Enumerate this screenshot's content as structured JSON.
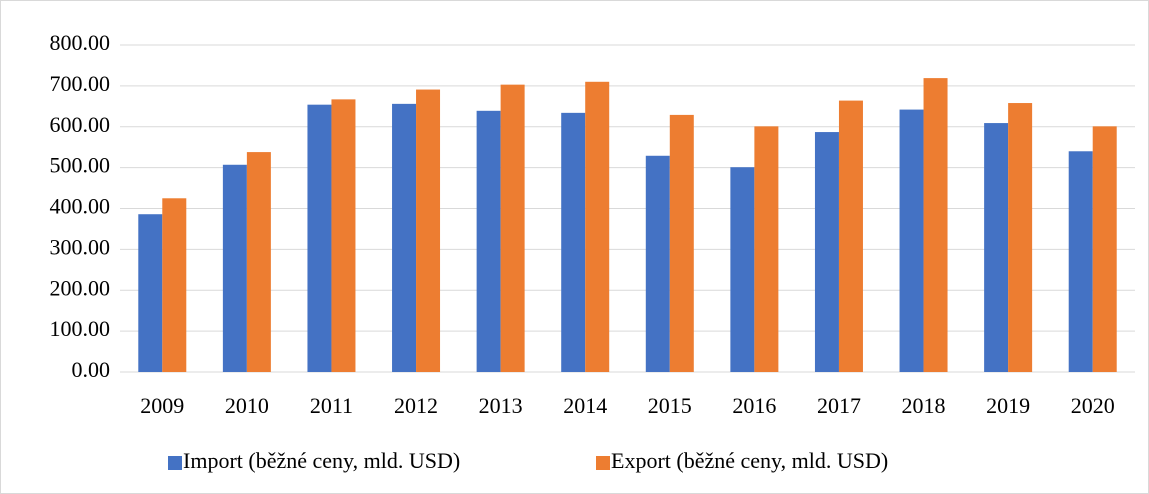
{
  "chart_data": {
    "type": "bar",
    "categories": [
      "2009",
      "2010",
      "2011",
      "2012",
      "2013",
      "2014",
      "2015",
      "2016",
      "2017",
      "2018",
      "2019",
      "2020"
    ],
    "series": [
      {
        "name": "Import (běžné ceny, mld. USD)",
        "color": "#4472c4",
        "values": [
          386,
          507,
          654,
          656,
          639,
          634,
          529,
          501,
          587,
          642,
          609,
          540
        ]
      },
      {
        "name": "Export (běžné ceny, mld. USD)",
        "color": "#ed7d31",
        "values": [
          425,
          538,
          667,
          691,
          703,
          710,
          629,
          601,
          664,
          719,
          658,
          601
        ]
      }
    ],
    "ylim": [
      0,
      800
    ],
    "yticks": [
      {
        "value": 0,
        "label": "0.00"
      },
      {
        "value": 100,
        "label": "100.00"
      },
      {
        "value": 200,
        "label": "200.00"
      },
      {
        "value": 300,
        "label": "300.00"
      },
      {
        "value": 400,
        "label": "400.00"
      },
      {
        "value": 500,
        "label": "500.00"
      },
      {
        "value": 600,
        "label": "600.00"
      },
      {
        "value": 700,
        "label": "700.00"
      },
      {
        "value": 800,
        "label": "800.00"
      }
    ],
    "grid": true,
    "legend": "bottom"
  }
}
